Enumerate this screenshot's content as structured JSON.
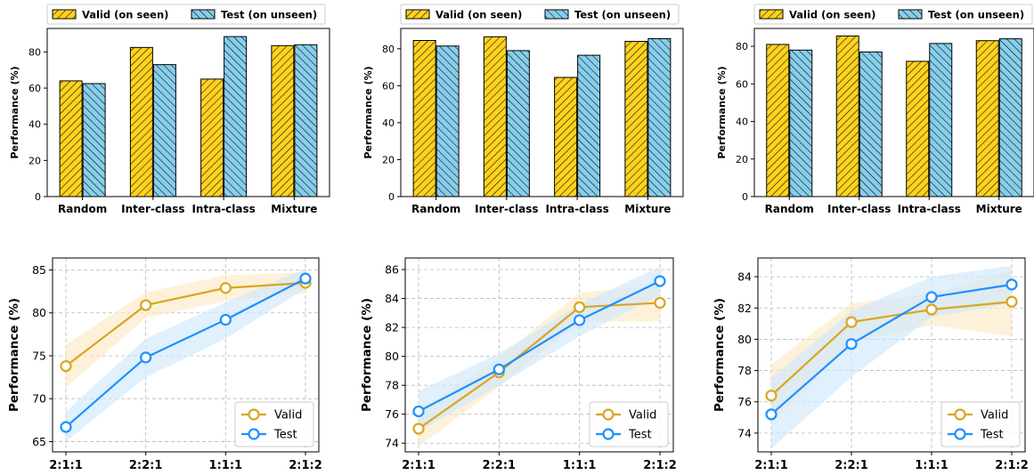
{
  "colors": {
    "valid_bar": "#FFD21F",
    "test_bar": "#87CEEB",
    "valid_line": "#DAA520",
    "test_line": "#1E90FF",
    "valid_band": "#FCE9C6",
    "test_band": "#CFE8FC"
  },
  "chart_data": [
    {
      "type": "bar",
      "categories": [
        "Random",
        "Inter-class",
        "Intra-class",
        "Mixture"
      ],
      "series": [
        {
          "name": "Valid (on seen)",
          "values": [
            64,
            82.5,
            65,
            83.5
          ]
        },
        {
          "name": "Test (on unseen)",
          "values": [
            62.5,
            73,
            88.5,
            84
          ]
        }
      ],
      "ylabel": "Performance (%)",
      "ylim": [
        0,
        93
      ],
      "yticks": [
        0,
        20,
        40,
        60,
        80
      ],
      "legend": "top"
    },
    {
      "type": "bar",
      "categories": [
        "Random",
        "Inter-class",
        "Intra-class",
        "Mixture"
      ],
      "series": [
        {
          "name": "Valid (on seen)",
          "values": [
            84.5,
            86.5,
            64.5,
            84
          ]
        },
        {
          "name": "Test (on unseen)",
          "values": [
            81.5,
            79,
            76.5,
            85.5
          ]
        }
      ],
      "ylabel": "Performance (%)",
      "ylim": [
        0,
        91
      ],
      "yticks": [
        0,
        20,
        40,
        60,
        80
      ],
      "legend": "top"
    },
    {
      "type": "bar",
      "categories": [
        "Random",
        "Inter-class",
        "Intra-class",
        "Mixture"
      ],
      "series": [
        {
          "name": "Valid (on seen)",
          "values": [
            81,
            85.5,
            72,
            83
          ]
        },
        {
          "name": "Test (on unseen)",
          "values": [
            78,
            77,
            81.5,
            84
          ]
        }
      ],
      "ylabel": "Performance (%)",
      "ylim": [
        0,
        89.5
      ],
      "yticks": [
        0,
        20,
        40,
        60,
        80
      ],
      "legend": "top"
    },
    {
      "type": "line",
      "x": [
        "2:1:1",
        "2:2:1",
        "1:1:1",
        "2:1:2"
      ],
      "series": [
        {
          "name": "Valid",
          "values": [
            73.8,
            80.9,
            82.9,
            83.5
          ],
          "lower": [
            71.3,
            79.4,
            81.4,
            82.3
          ],
          "upper": [
            76.3,
            82.4,
            84.4,
            84.7
          ]
        },
        {
          "name": "Test",
          "values": [
            66.7,
            74.8,
            79.2,
            84.0
          ],
          "lower": [
            65.0,
            72.5,
            77.0,
            82.8
          ],
          "upper": [
            68.5,
            77.0,
            81.2,
            85.2
          ]
        }
      ],
      "ylabel": "Performance (%)",
      "ylim": [
        63.8,
        86.4
      ],
      "yticks": [
        65,
        70,
        75,
        80,
        85
      ],
      "grid": true,
      "legend": "bottom-right"
    },
    {
      "type": "line",
      "x": [
        "2:1:1",
        "2:2:1",
        "1:1:1",
        "2:1:2"
      ],
      "series": [
        {
          "name": "Valid",
          "values": [
            75.0,
            78.9,
            83.4,
            83.7
          ],
          "lower": [
            73.8,
            77.9,
            82.4,
            82.4
          ],
          "upper": [
            76.2,
            79.9,
            84.4,
            84.9
          ]
        },
        {
          "name": "Test",
          "values": [
            76.2,
            79.1,
            82.5,
            85.2
          ],
          "lower": [
            74.8,
            78.0,
            81.4,
            84.2
          ],
          "upper": [
            77.6,
            80.2,
            83.6,
            86.2
          ]
        }
      ],
      "ylabel": "Performance (%)",
      "ylim": [
        73.4,
        86.8
      ],
      "yticks": [
        74,
        76,
        78,
        80,
        82,
        84,
        86
      ],
      "grid": true,
      "legend": "bottom-right"
    },
    {
      "type": "line",
      "x": [
        "2:1:1",
        "2:2:1",
        "1:1:1",
        "2:1:2"
      ],
      "series": [
        {
          "name": "Valid",
          "values": [
            76.4,
            81.1,
            81.9,
            82.4
          ],
          "lower": [
            74.6,
            79.8,
            80.9,
            80.2
          ],
          "upper": [
            78.4,
            82.3,
            82.9,
            84.4
          ]
        },
        {
          "name": "Test",
          "values": [
            75.2,
            79.7,
            82.7,
            83.5
          ],
          "lower": [
            73.0,
            77.6,
            81.4,
            82.3
          ],
          "upper": [
            77.5,
            81.8,
            84.0,
            84.7
          ]
        }
      ],
      "ylabel": "Performance (%)",
      "ylim": [
        72.8,
        85.2
      ],
      "yticks": [
        74,
        76,
        78,
        80,
        82,
        84
      ],
      "grid": true,
      "legend": "bottom-right"
    }
  ]
}
